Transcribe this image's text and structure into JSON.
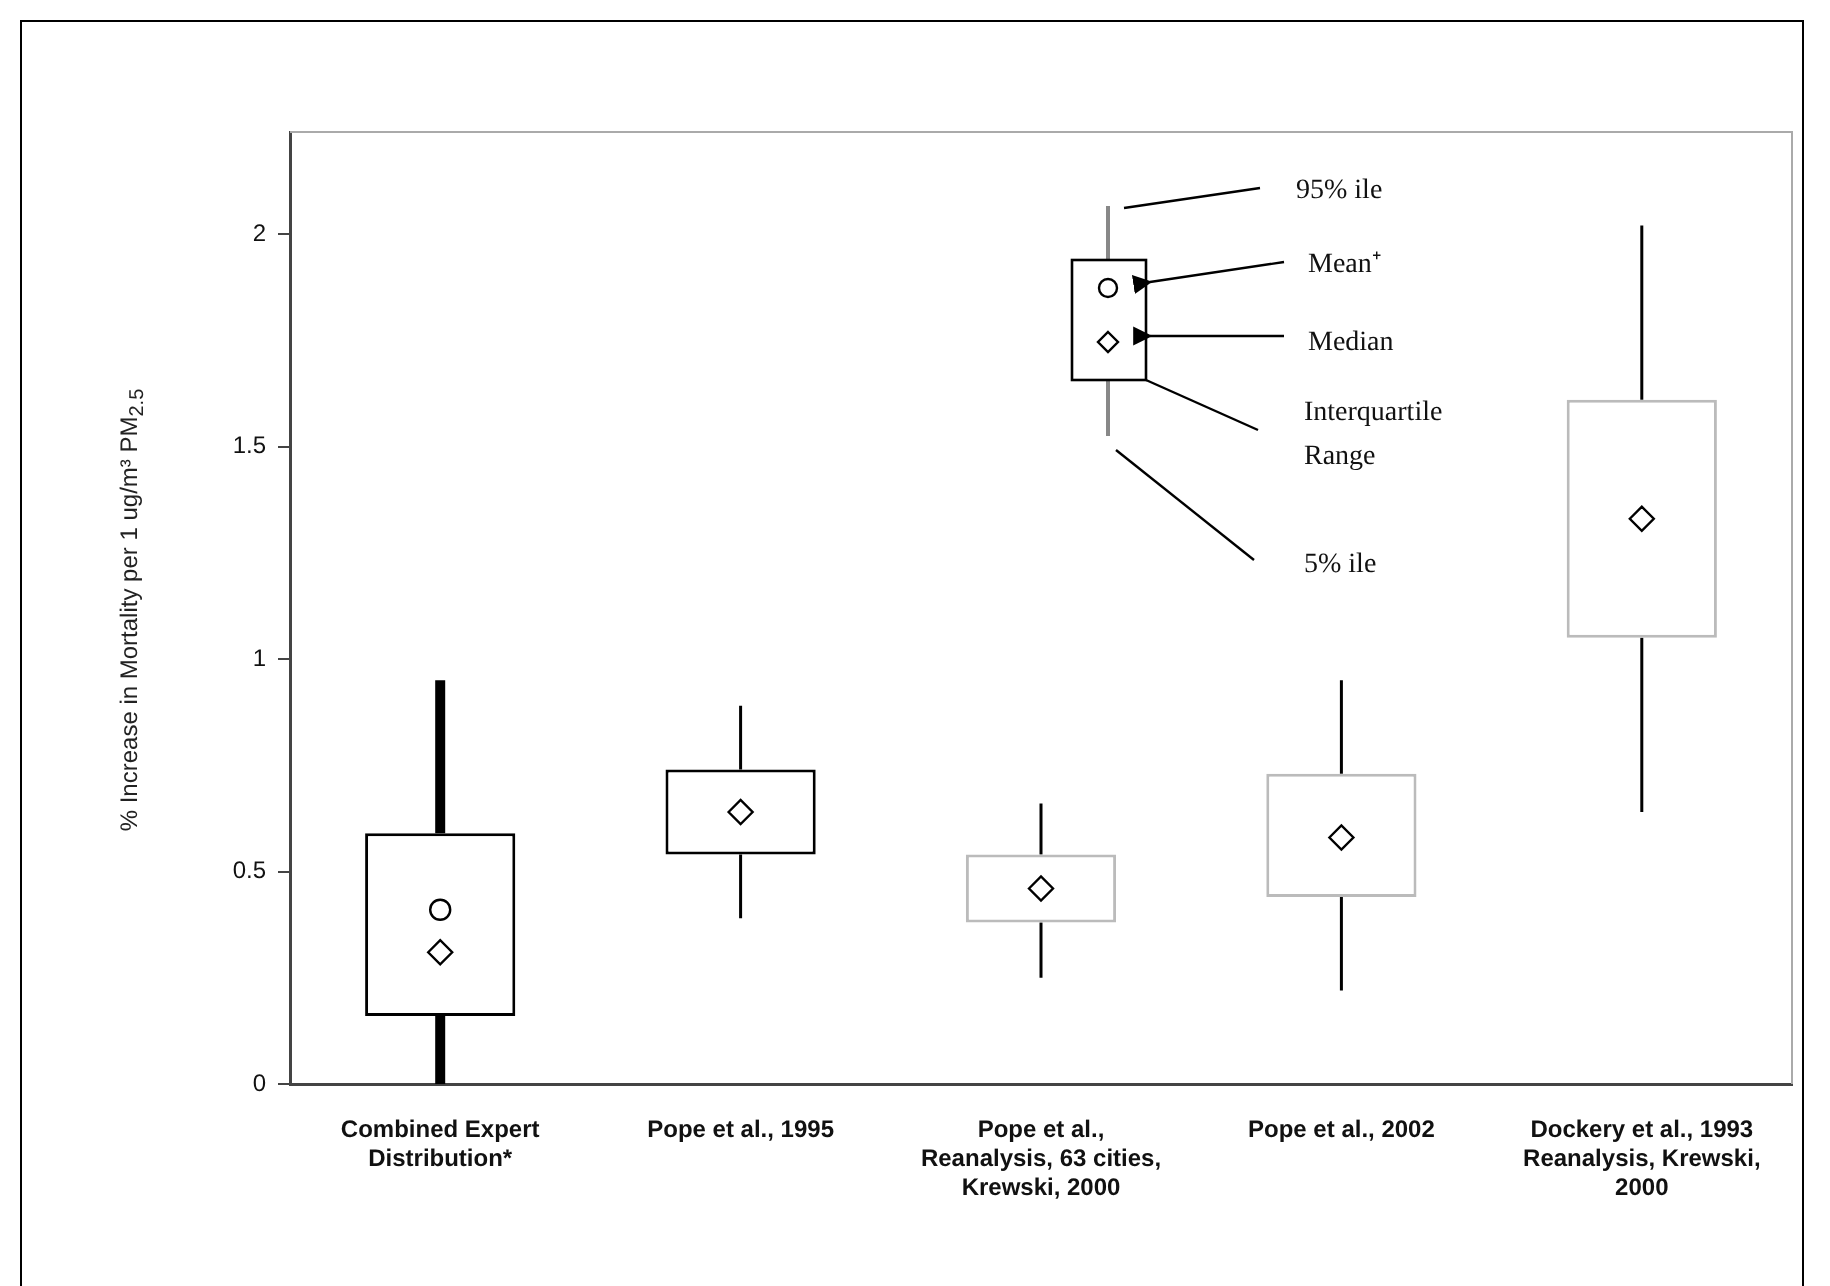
{
  "chart_data": {
    "type": "box",
    "ylabel": "% Increase in Mortality per 1 ug/m³ PM$_{2.5}$",
    "categories": [
      "Combined Expert Distribution*",
      "Pope et al., 1995",
      "Pope et al., Reanalysis, 63 cities, Krewski, 2000",
      "Pope et al., 2002",
      "Dockery et al., 1993 Reanalysis, Krewski, 2000"
    ],
    "boxes": [
      {
        "low": 0,
        "q1": 0.16,
        "median": 0.31,
        "q3": 0.59,
        "high": 0.95,
        "mean": 0.41
      },
      {
        "low": 0.39,
        "q1": 0.54,
        "median": 0.64,
        "q3": 0.74,
        "high": 0.89
      },
      {
        "low": 0.25,
        "q1": 0.38,
        "median": 0.46,
        "q3": 0.54,
        "high": 0.66
      },
      {
        "low": 0.22,
        "q1": 0.44,
        "median": 0.58,
        "q3": 0.73,
        "high": 0.95
      },
      {
        "low": 0.64,
        "q1": 1.05,
        "median": 1.33,
        "q3": 1.61,
        "high": 2.02
      }
    ],
    "colors": [
      "#000000",
      "#000000",
      "#bbbbbb",
      "#bbbbbb",
      "#bbbbbb"
    ],
    "ylim": [
      0,
      2.24
    ],
    "yticks": [
      0,
      0.5,
      1,
      1.5,
      2
    ],
    "grid": false,
    "legend": false,
    "marker": "diamond",
    "annotations": [
      "95% ile",
      "Mean⁺",
      "Median",
      "Interquartile Range",
      "5% ile"
    ]
  }
}
